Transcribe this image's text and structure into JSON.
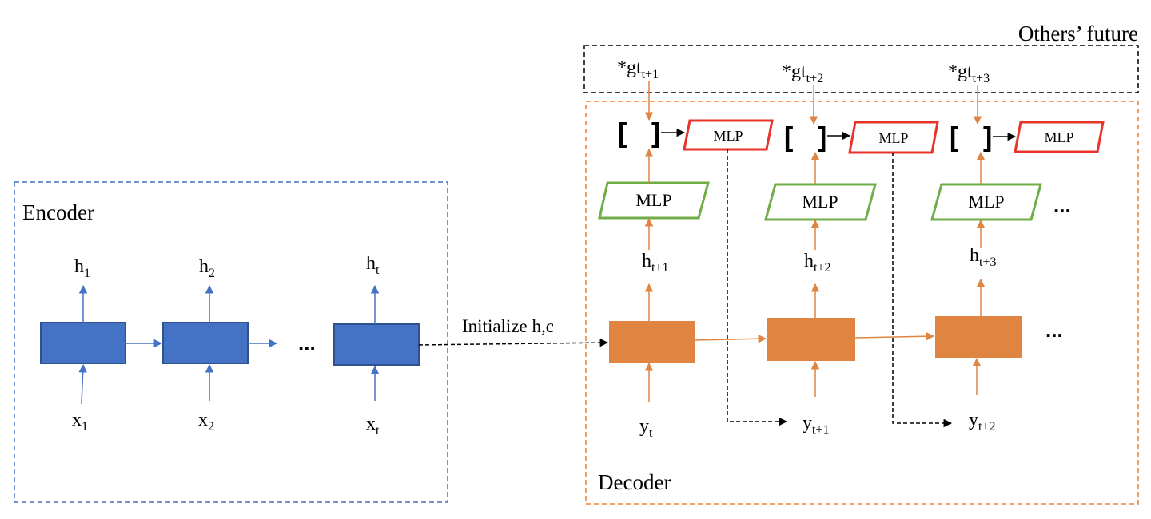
{
  "encoder": {
    "title": "Encoder",
    "hidden": [
      {
        "base": "h",
        "sub": "1"
      },
      {
        "base": "h",
        "sub": "2"
      },
      {
        "base": "h",
        "sub": "t"
      }
    ],
    "inputs": [
      {
        "base": "x",
        "sub": "1"
      },
      {
        "base": "x",
        "sub": "2"
      },
      {
        "base": "x",
        "sub": "t"
      }
    ],
    "ellipsis": "..."
  },
  "bridge_label": "Initialize h,c",
  "decoder": {
    "title": "Decoder",
    "hidden": [
      {
        "base": "h",
        "sub": "t+1"
      },
      {
        "base": "h",
        "sub": "t+2"
      },
      {
        "base": "h",
        "sub": "t+3"
      }
    ],
    "inputs": [
      {
        "base": "y",
        "sub": "t"
      },
      {
        "base": "y",
        "sub": "t+1"
      },
      {
        "base": "y",
        "sub": "t+2"
      }
    ],
    "mlp_label": "MLP",
    "ellipsis": "..."
  },
  "others_future": {
    "title": "Others’ future",
    "items": [
      {
        "base": "*gt",
        "sub": "t+1"
      },
      {
        "base": "*gt",
        "sub": "t+2"
      },
      {
        "base": "*gt",
        "sub": "t+3"
      }
    ]
  },
  "brackets": {
    "open": "[",
    "close": "]"
  },
  "colors": {
    "encoder_cell": "#4472C4",
    "encoder_arrow": "#4472C4",
    "decoder_cell": "#E08442",
    "decoder_arrow": "#E08442",
    "mlp_green": "#70AD47",
    "mlp_red": "#E8332A",
    "encoder_border": "#4472C4",
    "decoder_border": "#ED7D31"
  }
}
